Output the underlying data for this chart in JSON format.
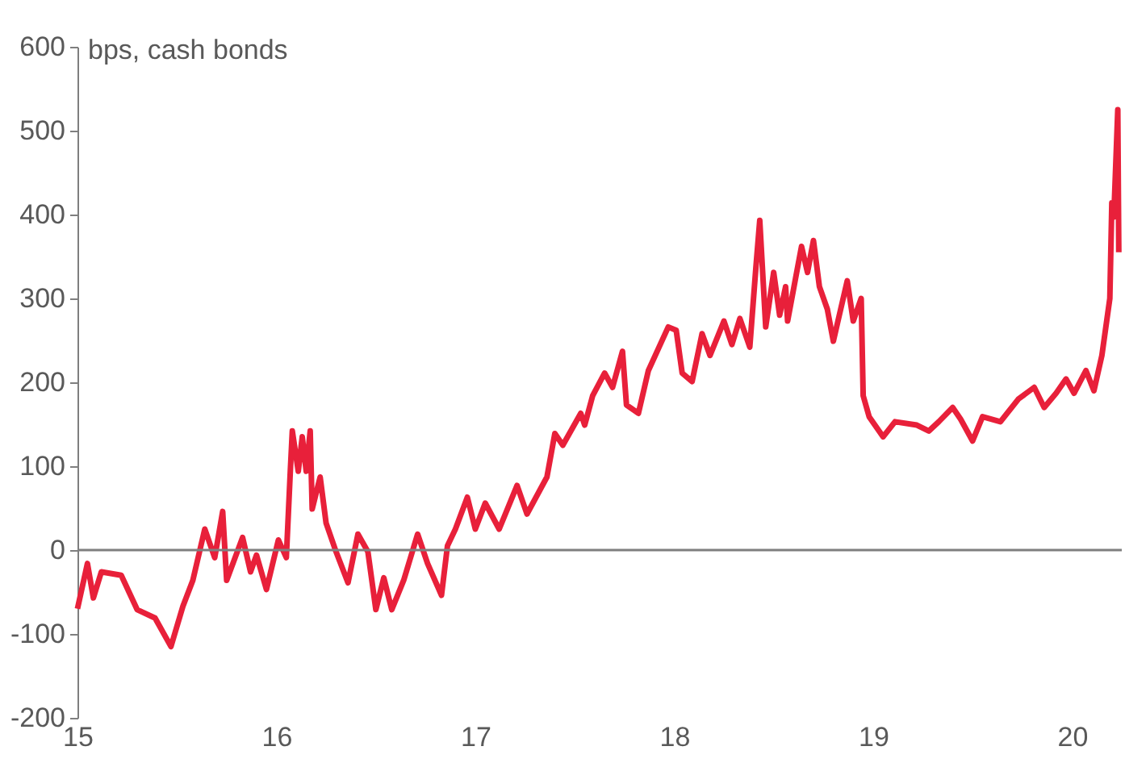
{
  "chart_data": {
    "type": "line",
    "ylabel": "bps, cash bonds",
    "x": [
      15.0,
      15.05,
      15.08,
      15.12,
      15.22,
      15.3,
      15.39,
      15.47,
      15.53,
      15.58,
      15.64,
      15.69,
      15.73,
      15.75,
      15.83,
      15.87,
      15.9,
      15.95,
      16.01,
      16.05,
      16.07,
      16.08,
      16.11,
      16.13,
      16.15,
      16.17,
      16.18,
      16.22,
      16.25,
      16.3,
      16.36,
      16.41,
      16.46,
      16.5,
      16.54,
      16.58,
      16.64,
      16.71,
      16.76,
      16.83,
      16.86,
      16.9,
      16.96,
      17.0,
      17.05,
      17.12,
      17.21,
      17.26,
      17.36,
      17.4,
      17.44,
      17.53,
      17.55,
      17.59,
      17.65,
      17.69,
      17.74,
      17.76,
      17.82,
      17.87,
      17.97,
      18.01,
      18.04,
      18.09,
      18.14,
      18.18,
      18.25,
      18.29,
      18.33,
      18.38,
      18.41,
      18.43,
      18.46,
      18.5,
      18.53,
      18.56,
      18.57,
      18.61,
      18.64,
      18.67,
      18.7,
      18.73,
      18.77,
      18.8,
      18.83,
      18.87,
      18.9,
      18.94,
      18.95,
      18.98,
      19.05,
      19.11,
      19.22,
      19.28,
      19.33,
      19.4,
      19.44,
      19.5,
      19.55,
      19.64,
      19.73,
      19.81,
      19.86,
      19.92,
      19.97,
      20.01,
      20.07,
      20.11,
      20.15,
      20.19,
      20.2,
      20.21,
      20.23,
      20.235
    ],
    "series": [
      {
        "color": "#e8203a",
        "values": [
          -70,
          -16,
          -57,
          -26,
          -30,
          -71,
          -81,
          -115,
          -67,
          -36,
          25,
          -9,
          46,
          -36,
          15,
          -26,
          -6,
          -47,
          12,
          -9,
          94,
          142,
          94,
          135,
          94,
          142,
          49,
          87,
          32,
          -2,
          -39,
          19,
          -2,
          -71,
          -33,
          -71,
          -36,
          19,
          -16,
          -54,
          5,
          25,
          63,
          25,
          56,
          25,
          77,
          43,
          87,
          139,
          125,
          163,
          149,
          184,
          211,
          194,
          237,
          173,
          163,
          214,
          266,
          262,
          211,
          201,
          258,
          232,
          273,
          245,
          276,
          242,
          335,
          393,
          266,
          331,
          280,
          314,
          273,
          324,
          362,
          331,
          369,
          314,
          287,
          249,
          280,
          321,
          273,
          300,
          184,
          159,
          135,
          153,
          149,
          142,
          153,
          170,
          156,
          130,
          159,
          153,
          180,
          194,
          170,
          187,
          204,
          187,
          214,
          190,
          232,
          300,
          414,
          397,
          525,
          355
        ]
      }
    ],
    "xlim": [
      15,
      20.25
    ],
    "xticks": [
      15,
      16,
      17,
      18,
      19,
      20
    ],
    "ylim": [
      -200,
      600
    ],
    "yticks": [
      -200,
      -100,
      0,
      100,
      200,
      300,
      400,
      500,
      600
    ],
    "ref_lines": [
      {
        "axis": "y",
        "value": 0,
        "color": "#7f7f7f"
      }
    ],
    "grid": false,
    "legend": false,
    "marker": "none",
    "line_style": "solid"
  }
}
